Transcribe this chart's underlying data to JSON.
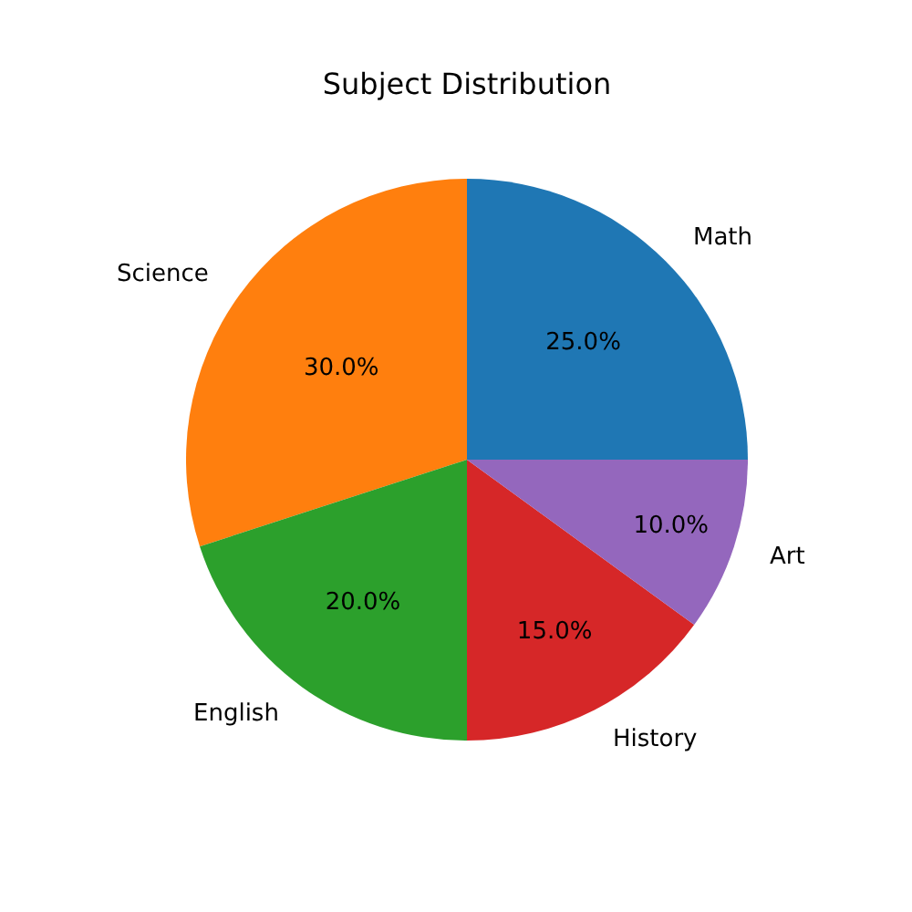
{
  "chart_data": {
    "type": "pie",
    "title": "Subject Distribution",
    "categories": [
      "Math",
      "Science",
      "English",
      "History",
      "Art"
    ],
    "values": [
      25,
      30,
      20,
      15,
      10
    ],
    "value_labels": [
      "25.0%",
      "30.0%",
      "20.0%",
      "15.0%",
      "10.0%"
    ],
    "colors": [
      "#1f77b4",
      "#ff7f0e",
      "#2ca02c",
      "#d62728",
      "#9467bd"
    ],
    "legend": false
  }
}
